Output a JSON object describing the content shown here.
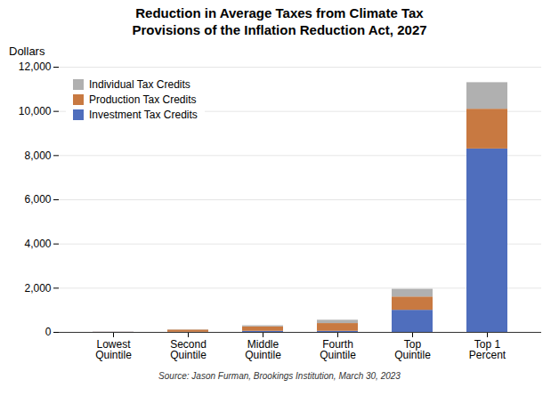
{
  "chart_data": {
    "type": "bar",
    "title": "Reduction in Average Taxes from Climate Tax\nProvisions of the Inflation Reduction Act, 2027",
    "ylabel": "Dollars",
    "source": "Source: Jason Furman, Brookings Institution, March 30, 2023",
    "categories": [
      "Lowest\nQuintile",
      "Second\nQuintile",
      "Middle\nQuintile",
      "Fourth\nQuintile",
      "Top\nQuintile",
      "Top 1\nPercent"
    ],
    "series": [
      {
        "name": "Investment Tax Credits",
        "color": "#4F6EBD",
        "values": [
          5,
          5,
          50,
          50,
          1000,
          8300
        ]
      },
      {
        "name": "Production Tax Credits",
        "color": "#C87941",
        "values": [
          5,
          100,
          200,
          350,
          600,
          1800
        ]
      },
      {
        "name": "Individual Tax Credits",
        "color": "#B0B0B0",
        "values": [
          5,
          10,
          50,
          150,
          350,
          1200
        ]
      }
    ],
    "stacked": true,
    "ylim": [
      0,
      12000
    ],
    "yticks": [
      0,
      {
        "value": 2000,
        "label": "2,000"
      },
      {
        "value": 4000,
        "label": "4,000"
      },
      {
        "value": 6000,
        "label": "6,000"
      },
      {
        "value": 8000,
        "label": "8,000"
      },
      {
        "value": 10000,
        "label": "10,000"
      },
      {
        "value": 12000,
        "label": "12,000"
      }
    ],
    "grid": true,
    "legend": "upper left"
  }
}
